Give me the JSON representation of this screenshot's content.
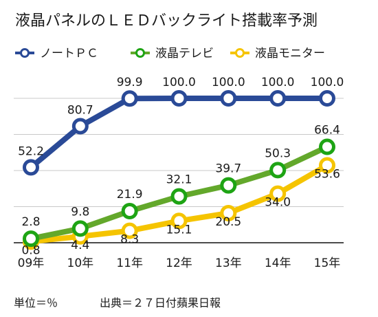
{
  "chart_data": {
    "type": "line",
    "title": "液晶パネルのＬＥＤバックライト搭載率予測",
    "categories": [
      "09年",
      "10年",
      "11年",
      "12年",
      "13年",
      "14年",
      "15年"
    ],
    "ylim": [
      0,
      100
    ],
    "grid": true,
    "legend_position": "top",
    "series": [
      {
        "name": "ノートＰＣ",
        "color": "#2a4a97",
        "values": [
          52.2,
          80.7,
          99.9,
          100.0,
          100.0,
          100.0,
          100.0
        ],
        "labels": [
          "52.2",
          "80.7",
          "99.9",
          "100.0",
          "100.0",
          "100.0",
          "100.0"
        ]
      },
      {
        "name": "液晶テレビ",
        "color": "#1ea414",
        "line_color": "#63a82b",
        "values": [
          2.8,
          9.8,
          21.9,
          32.1,
          39.7,
          50.3,
          66.4
        ],
        "labels": [
          "2.8",
          "9.8",
          "21.9",
          "32.1",
          "39.7",
          "50.3",
          "66.4"
        ]
      },
      {
        "name": "液晶モニター",
        "color": "#f5c400",
        "values": [
          0.8,
          4.4,
          8.3,
          15.1,
          20.5,
          34.0,
          53.6
        ],
        "labels": [
          "0.8",
          "4.4",
          "8.3",
          "15.1",
          "20.5",
          "34.0",
          "53.6"
        ]
      }
    ]
  },
  "footer": {
    "unit": "単位＝％",
    "source": "出典＝２７日付蘋果日報"
  }
}
